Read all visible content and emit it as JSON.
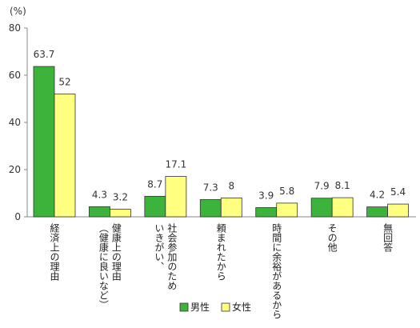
{
  "chart_data": {
    "type": "bar",
    "unit_label": "(%)",
    "ylim": [
      0,
      80
    ],
    "yticks": [
      "0",
      "20",
      "40",
      "60",
      "80"
    ],
    "grid": false,
    "legend_position": "bottom",
    "categories": [
      {
        "line1": "経済上の理由",
        "line2": ""
      },
      {
        "line1": "健康上の理由",
        "line2": "（健康に良いなど）"
      },
      {
        "line1": "社会参加のため",
        "line2": "いきがい、"
      },
      {
        "line1": "頼まれたから",
        "line2": ""
      },
      {
        "line1": "時間に余裕があるから",
        "line2": ""
      },
      {
        "line1": "その他",
        "line2": ""
      },
      {
        "line1": "無回答",
        "line2": ""
      }
    ],
    "series": [
      {
        "name": "男性",
        "color": "#3cb43c",
        "values": [
          63.7,
          4.3,
          8.7,
          7.3,
          3.9,
          7.9,
          4.2
        ],
        "labels": [
          "63.7",
          "4.3",
          "8.7",
          "7.3",
          "3.9",
          "7.9",
          "4.2"
        ]
      },
      {
        "name": "女性",
        "color": "#ffff80",
        "values": [
          52,
          3.2,
          17.1,
          8,
          5.8,
          8.1,
          5.4
        ],
        "labels": [
          "52",
          "3.2",
          "17.1",
          "8",
          "5.8",
          "8.1",
          "5.4"
        ]
      }
    ]
  }
}
